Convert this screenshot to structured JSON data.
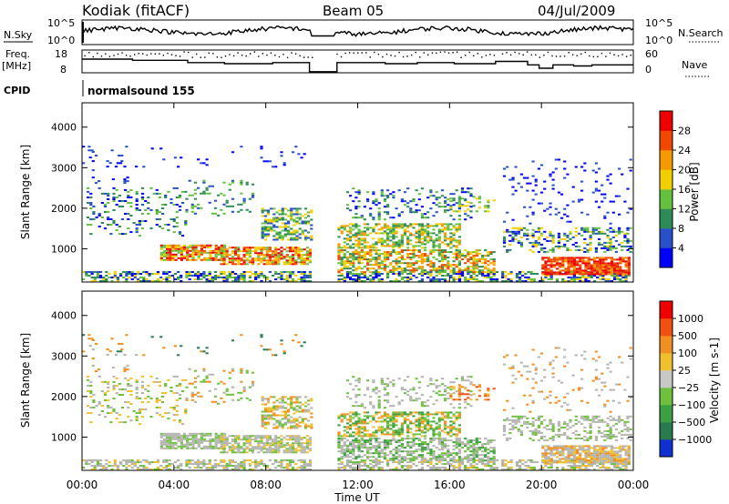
{
  "header": {
    "title": "Kodiak (fitACF)",
    "beam": "Beam 05",
    "date": "04/Jul/2009"
  },
  "top_panels": {
    "nsky_label": "N.Sky",
    "nsky_ticks": [
      "10^5",
      "10^0"
    ],
    "nsearch_label": "N.Search",
    "nsearch_ticks": [
      "10^5",
      "10^0"
    ],
    "freq_label_1": "Freq.",
    "freq_label_2": "[MHz]",
    "freq_ticks": [
      "18",
      "8"
    ],
    "nave_label": "Nave",
    "nave_ticks": [
      "60",
      "0"
    ],
    "cpid_label": "CPID",
    "cpid_value": "normalsound 155"
  },
  "chart_data": [
    {
      "type": "heatmap",
      "name": "power-panel",
      "ylabel": "Slant Range [km]",
      "ylim": [
        180,
        4600
      ],
      "yticks": [
        "4000",
        "3000",
        "2000",
        "1000"
      ],
      "ytick_values": [
        4000,
        3000,
        2000,
        1000
      ],
      "colorbar_label": "Power [dB]",
      "colorbar_ticks": [
        "28",
        "24",
        "20",
        "16",
        "12",
        "8",
        "4"
      ],
      "colorbar_colors": [
        "#0000ff",
        "#2850c8",
        "#2e8b57",
        "#66c040",
        "#f2d000",
        "#f59a00",
        "#f04800",
        "#ee0000"
      ],
      "grid": false,
      "data_gap_hours": [
        [
          10.0,
          11.0
        ],
        [
          18.05,
          18.2
        ]
      ]
    },
    {
      "type": "heatmap",
      "name": "velocity-panel",
      "ylabel": "Slant Range [km]",
      "ylim": [
        180,
        4600
      ],
      "yticks": [
        "4000",
        "3000",
        "2000",
        "1000"
      ],
      "ytick_values": [
        4000,
        3000,
        2000,
        1000
      ],
      "colorbar_label": "Velocity [m s-1]",
      "colorbar_ticks": [
        "1000",
        "500",
        "100",
        "25",
        "−25",
        "−100",
        "−500",
        "−1000"
      ],
      "colorbar_colors": [
        "#1030d0",
        "#2a7a50",
        "#3aa040",
        "#70c040",
        "#c8c8c4",
        "#f0c030",
        "#f09020",
        "#f05010",
        "#ee0000"
      ],
      "grid": false,
      "data_gap_hours": [
        [
          10.0,
          11.0
        ],
        [
          18.05,
          18.2
        ]
      ]
    }
  ],
  "x_axis": {
    "ticks": [
      "00:00",
      "04:00",
      "08:00",
      "12:00",
      "16:00",
      "20:00",
      "00:00"
    ],
    "tick_hours": [
      0,
      4,
      8,
      12,
      16,
      20,
      24
    ],
    "label": "Time UT",
    "xlim_hours": [
      0,
      24
    ]
  },
  "colors": {
    "ground_scatter": "#b4b4b0"
  }
}
